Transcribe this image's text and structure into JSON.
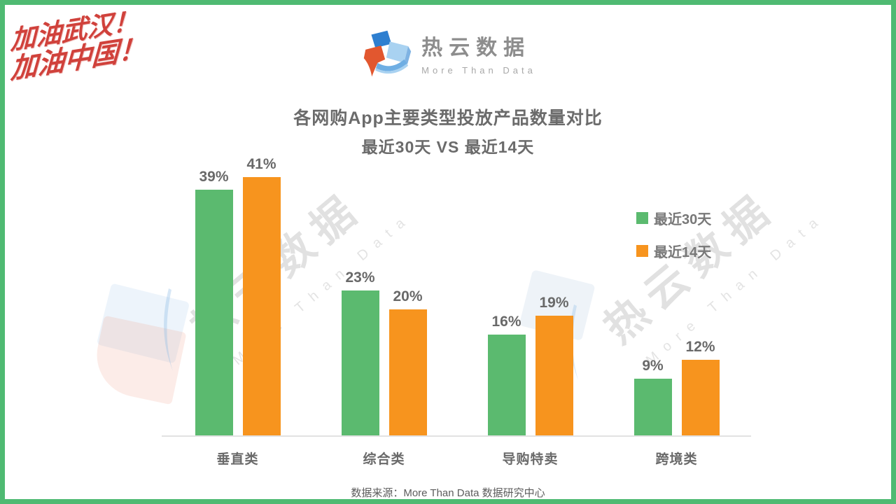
{
  "stamp": {
    "line1": "加油武汉！",
    "line2": "加油中国！"
  },
  "logo": {
    "name": "热云数据",
    "tagline": "More Than Data"
  },
  "watermark": {
    "text": "热云数据",
    "subtext": "More Than Data"
  },
  "footer": {
    "text": "数据来源：More Than Data 数据研究中心"
  },
  "colors": {
    "frame_green": "#4FBA72",
    "series_green": "#5BBA6F",
    "series_orange": "#F7941E",
    "text_gray": "#6b6b6b",
    "stamp_red": "#D0413B"
  },
  "icons": {
    "logo-cubes-icon": "three tilted cubes (dark blue, light blue, orange-red) with blue swoosh",
    "legend-swatch": "small colored square",
    "watermark-swoosh-icon": "faint light-blue curved sliver"
  },
  "chart_data": {
    "type": "bar",
    "title": "各网购App主要类型投放产品数量对比",
    "subtitle": "最近30天 VS 最近14天",
    "categories": [
      "垂直类",
      "综合类",
      "导购特卖",
      "跨境类"
    ],
    "series": [
      {
        "name": "最近30天",
        "color": "#5BBA6F",
        "values": [
          39,
          23,
          16,
          9
        ]
      },
      {
        "name": "最近14天",
        "color": "#F7941E",
        "values": [
          41,
          20,
          19,
          12
        ]
      }
    ],
    "value_suffix": "%",
    "ylim": [
      0,
      45
    ],
    "grid": false,
    "legend_position": "right",
    "xlabel": "",
    "ylabel": ""
  }
}
